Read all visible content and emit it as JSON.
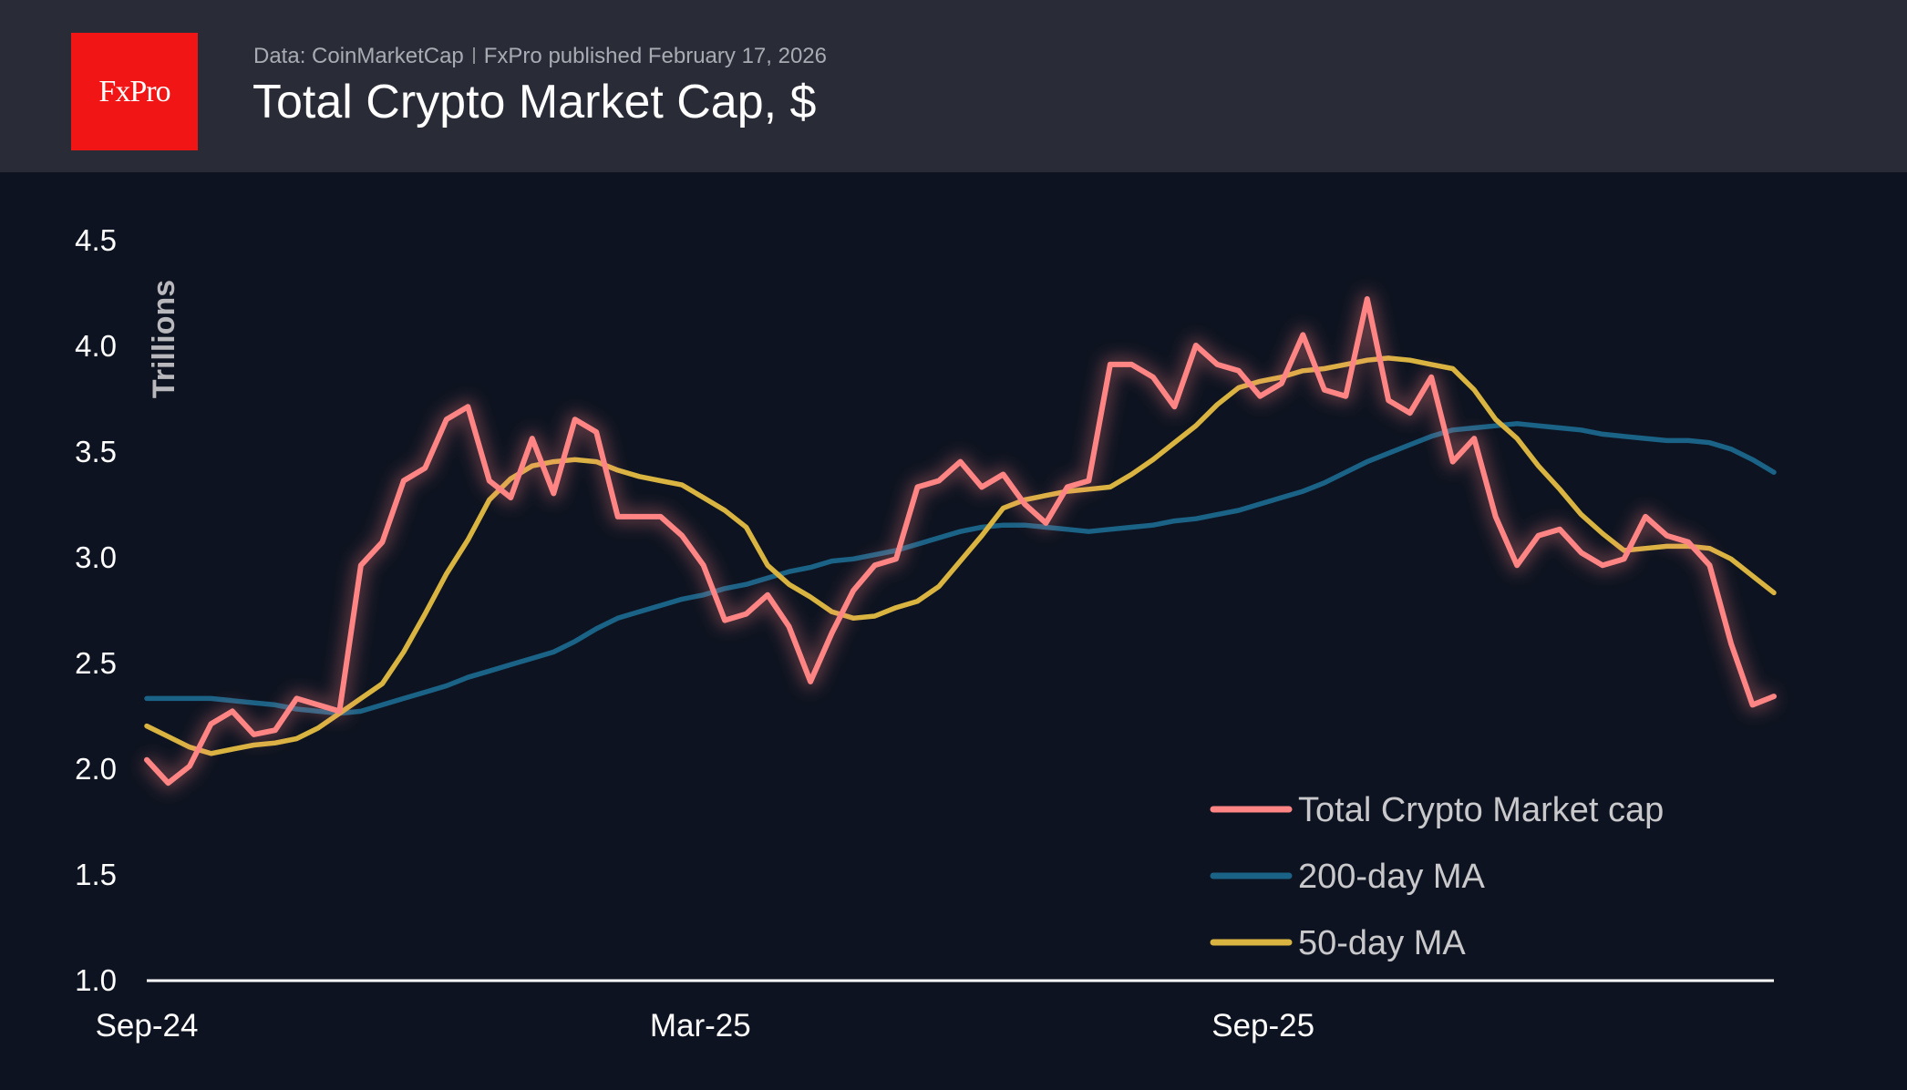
{
  "header": {
    "logo_text": "FxPro",
    "source": "Data: CoinMarketCap",
    "published": "FxPro published February 17, 2026",
    "title": "Total Crypto Market Cap, $"
  },
  "chart_data": {
    "type": "line",
    "title": "Total Crypto Market Cap, $",
    "ylabel": "Trillions",
    "xlabel": "",
    "ylim": [
      1.0,
      4.5
    ],
    "xlim": [
      "2024-09-01",
      "2026-02-15"
    ],
    "yticks": [
      "1.0",
      "1.5",
      "2.0",
      "2.5",
      "3.0",
      "3.5",
      "4.0",
      "4.5"
    ],
    "xticks": [
      {
        "label": "Sep-24",
        "date": "2024-09-01"
      },
      {
        "label": "Mar-25",
        "date": "2025-03-01"
      },
      {
        "label": "Sep-25",
        "date": "2025-09-01"
      }
    ],
    "grid": false,
    "legend_position": "bottom-right",
    "x": [
      "2024-09-01",
      "2024-09-08",
      "2024-09-15",
      "2024-09-22",
      "2024-09-29",
      "2024-10-06",
      "2024-10-13",
      "2024-10-20",
      "2024-10-27",
      "2024-11-03",
      "2024-11-10",
      "2024-11-17",
      "2024-11-24",
      "2024-12-01",
      "2024-12-08",
      "2024-12-15",
      "2024-12-22",
      "2024-12-29",
      "2025-01-05",
      "2025-01-12",
      "2025-01-19",
      "2025-01-26",
      "2025-02-02",
      "2025-02-09",
      "2025-02-16",
      "2025-02-23",
      "2025-03-02",
      "2025-03-09",
      "2025-03-16",
      "2025-03-23",
      "2025-03-30",
      "2025-04-06",
      "2025-04-13",
      "2025-04-20",
      "2025-04-27",
      "2025-05-04",
      "2025-05-11",
      "2025-05-18",
      "2025-05-25",
      "2025-06-01",
      "2025-06-08",
      "2025-06-15",
      "2025-06-22",
      "2025-06-29",
      "2025-07-06",
      "2025-07-13",
      "2025-07-20",
      "2025-07-27",
      "2025-08-03",
      "2025-08-10",
      "2025-08-17",
      "2025-08-24",
      "2025-08-31",
      "2025-09-07",
      "2025-09-14",
      "2025-09-21",
      "2025-09-28",
      "2025-10-05",
      "2025-10-12",
      "2025-10-19",
      "2025-10-26",
      "2025-11-02",
      "2025-11-09",
      "2025-11-16",
      "2025-11-23",
      "2025-11-30",
      "2025-12-07",
      "2025-12-14",
      "2025-12-21",
      "2025-12-28",
      "2026-01-04",
      "2026-01-11",
      "2026-01-18",
      "2026-01-25",
      "2026-02-01",
      "2026-02-08",
      "2026-02-15"
    ],
    "series": [
      {
        "name": "Total Crypto Market cap",
        "color": "#ff8585",
        "values": [
          2.04,
          1.93,
          2.01,
          2.21,
          2.27,
          2.16,
          2.18,
          2.33,
          2.3,
          2.27,
          2.96,
          3.07,
          3.36,
          3.42,
          3.65,
          3.71,
          3.36,
          3.28,
          3.56,
          3.3,
          3.65,
          3.59,
          3.19,
          3.19,
          3.19,
          3.1,
          2.96,
          2.7,
          2.73,
          2.82,
          2.67,
          2.41,
          2.64,
          2.84,
          2.96,
          2.99,
          3.33,
          3.36,
          3.45,
          3.33,
          3.39,
          3.25,
          3.16,
          3.33,
          3.36,
          3.91,
          3.91,
          3.85,
          3.71,
          4.0,
          3.91,
          3.88,
          3.76,
          3.82,
          4.05,
          3.79,
          3.76,
          4.22,
          3.74,
          3.68,
          3.85,
          3.45,
          3.56,
          3.19,
          2.96,
          3.1,
          3.13,
          3.02,
          2.96,
          2.99,
          3.19,
          3.1,
          3.07,
          2.96,
          2.59,
          2.3,
          2.34
        ]
      },
      {
        "name": "200-day MA",
        "color": "#1a6286",
        "values": [
          2.33,
          2.33,
          2.33,
          2.33,
          2.32,
          2.31,
          2.3,
          2.28,
          2.27,
          2.26,
          2.27,
          2.3,
          2.33,
          2.36,
          2.39,
          2.43,
          2.46,
          2.49,
          2.52,
          2.55,
          2.6,
          2.66,
          2.71,
          2.74,
          2.77,
          2.8,
          2.82,
          2.85,
          2.87,
          2.9,
          2.93,
          2.95,
          2.98,
          2.99,
          3.01,
          3.03,
          3.06,
          3.09,
          3.12,
          3.14,
          3.15,
          3.15,
          3.14,
          3.13,
          3.12,
          3.13,
          3.14,
          3.15,
          3.17,
          3.18,
          3.2,
          3.22,
          3.25,
          3.28,
          3.31,
          3.35,
          3.4,
          3.45,
          3.49,
          3.53,
          3.57,
          3.6,
          3.61,
          3.62,
          3.63,
          3.62,
          3.61,
          3.6,
          3.58,
          3.57,
          3.56,
          3.55,
          3.55,
          3.54,
          3.51,
          3.46,
          3.4
        ]
      },
      {
        "name": "50-day MA",
        "color": "#d9b440",
        "values": [
          2.2,
          2.15,
          2.1,
          2.07,
          2.09,
          2.11,
          2.12,
          2.14,
          2.19,
          2.26,
          2.33,
          2.4,
          2.55,
          2.73,
          2.92,
          3.08,
          3.27,
          3.37,
          3.43,
          3.45,
          3.46,
          3.45,
          3.41,
          3.38,
          3.36,
          3.34,
          3.28,
          3.22,
          3.14,
          2.96,
          2.87,
          2.81,
          2.74,
          2.71,
          2.72,
          2.76,
          2.79,
          2.86,
          2.98,
          3.1,
          3.23,
          3.27,
          3.29,
          3.31,
          3.32,
          3.33,
          3.39,
          3.46,
          3.54,
          3.62,
          3.72,
          3.8,
          3.83,
          3.85,
          3.88,
          3.89,
          3.91,
          3.93,
          3.94,
          3.93,
          3.91,
          3.89,
          3.79,
          3.65,
          3.56,
          3.43,
          3.32,
          3.2,
          3.11,
          3.03,
          3.04,
          3.05,
          3.05,
          3.04,
          2.99,
          2.91,
          2.83
        ]
      }
    ]
  }
}
